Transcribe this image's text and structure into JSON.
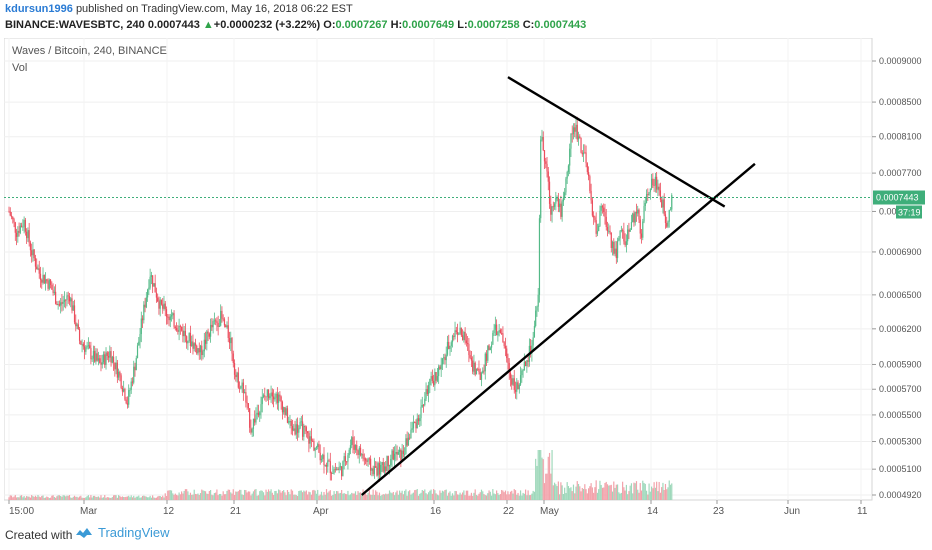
{
  "header": {
    "author": "kdursun1996",
    "published_text": "published on TradingView.com, May 16, 2018 06:22 EST",
    "symbol": "BINANCE:WAVESBTC, 240",
    "last": "0.0007443",
    "change": "+0.0000232 (+3.22%)",
    "o_label": "O:",
    "o_value": "0.0007267",
    "h_label": "H:",
    "h_value": "0.0007649",
    "l_label": "L:",
    "l_value": "0.0007258",
    "c_label": "C:",
    "c_value": "0.0007443"
  },
  "footer": {
    "created_with": "Created with",
    "brand": "TradingView",
    "brand_icon": "tradingview-logo-icon"
  },
  "colors": {
    "up": "#53b987",
    "down": "#eb4d5c",
    "trendline": "#000000",
    "price_line": "#3fae7a",
    "price_badge": "#3fae7a"
  },
  "chart_data": {
    "type": "candlestick",
    "title": "Waves / Bitcoin, 240, BINANCE",
    "sub_label": "Vol",
    "last_price": "0.0007443",
    "countdown": "37:19",
    "y_ticks": [
      "0.0009000",
      "0.0008500",
      "0.0008100",
      "0.0007700",
      "0.0007300",
      "0.0006900",
      "0.0006500",
      "0.0006200",
      "0.0005900",
      "0.0005700",
      "0.0005500",
      "0.0005300",
      "0.0005100",
      "0.0004920"
    ],
    "y_tick_values": [
      0.0009,
      0.00085,
      0.00081,
      0.00077,
      0.00073,
      0.00069,
      0.00065,
      0.00062,
      0.00059,
      0.00057,
      0.00055,
      0.00053,
      0.00051,
      0.000492
    ],
    "y_scale": "log",
    "x_ticks": [
      "15:00",
      "Mar",
      "12",
      "21",
      "Apr",
      "16",
      "22",
      "May",
      "14",
      "23",
      "Jun",
      "11"
    ],
    "price_path": [
      [
        0,
        0.00073
      ],
      [
        3,
        0.00071
      ],
      [
        6,
        0.00072
      ],
      [
        9,
        0.00069
      ],
      [
        12,
        0.00067
      ],
      [
        16,
        0.00066
      ],
      [
        20,
        0.00064
      ],
      [
        24,
        0.00065
      ],
      [
        28,
        0.00061
      ],
      [
        32,
        0.0006
      ],
      [
        36,
        0.00059
      ],
      [
        40,
        0.0006
      ],
      [
        44,
        0.00058
      ],
      [
        47,
        0.00056
      ],
      [
        50,
        0.00059
      ],
      [
        53,
        0.00063
      ],
      [
        56,
        0.00067
      ],
      [
        60,
        0.00064
      ],
      [
        64,
        0.00063
      ],
      [
        68,
        0.00062
      ],
      [
        72,
        0.00061
      ],
      [
        76,
        0.0006
      ],
      [
        80,
        0.00062
      ],
      [
        84,
        0.00063
      ],
      [
        88,
        0.00061
      ],
      [
        90,
        0.00058
      ],
      [
        93,
        0.00057
      ],
      [
        96,
        0.00054
      ],
      [
        100,
        0.00056
      ],
      [
        104,
        0.00057
      ],
      [
        108,
        0.00056
      ],
      [
        112,
        0.00054
      ],
      [
        116,
        0.00054
      ],
      [
        120,
        0.00053
      ],
      [
        124,
        0.00052
      ],
      [
        128,
        0.00051
      ],
      [
        132,
        0.00051
      ],
      [
        136,
        0.00053
      ],
      [
        140,
        0.00052
      ],
      [
        144,
        0.00051
      ],
      [
        148,
        0.00051
      ],
      [
        152,
        0.00052
      ],
      [
        156,
        0.00052
      ],
      [
        160,
        0.00054
      ],
      [
        163,
        0.00055
      ],
      [
        166,
        0.00057
      ],
      [
        169,
        0.00058
      ],
      [
        172,
        0.00059
      ],
      [
        175,
        0.00061
      ],
      [
        178,
        0.00062
      ],
      [
        181,
        0.00061
      ],
      [
        184,
        0.00059
      ],
      [
        187,
        0.00058
      ],
      [
        190,
        0.0006
      ],
      [
        193,
        0.00062
      ],
      [
        196,
        0.00061
      ],
      [
        199,
        0.00058
      ],
      [
        202,
        0.00057
      ],
      [
        205,
        0.00059
      ],
      [
        208,
        0.00061
      ],
      [
        210,
        0.00065
      ],
      [
        211,
        0.00081
      ],
      [
        213,
        0.00078
      ],
      [
        215,
        0.00073
      ],
      [
        217,
        0.00075
      ],
      [
        219,
        0.00073
      ],
      [
        221,
        0.00076
      ],
      [
        223,
        0.00081
      ],
      [
        225,
        0.00082
      ],
      [
        227,
        0.0008
      ],
      [
        229,
        0.00078
      ],
      [
        231,
        0.00074
      ],
      [
        233,
        0.00071
      ],
      [
        235,
        0.00073
      ],
      [
        237,
        0.00072
      ],
      [
        239,
        0.0007
      ],
      [
        241,
        0.00069
      ],
      [
        243,
        0.00071
      ],
      [
        245,
        0.0007
      ],
      [
        247,
        0.00072
      ],
      [
        249,
        0.00073
      ],
      [
        251,
        0.00071
      ],
      [
        253,
        0.00075
      ],
      [
        255,
        0.00076
      ],
      [
        257,
        0.00076
      ],
      [
        259,
        0.00074
      ],
      [
        261,
        0.00072
      ],
      [
        263,
        0.000744
      ]
    ],
    "x_days_range": [
      0,
      340
    ],
    "trendlines": [
      {
        "name": "resistance",
        "from": [
          198,
          0.00088
        ],
        "to": [
          284,
          0.000735
        ]
      },
      {
        "name": "support",
        "from": [
          140,
          0.000492
        ],
        "to": [
          296,
          0.00078
        ]
      }
    ],
    "current_price_line": 0.0007443,
    "volume_note": "volume bars along bottom"
  }
}
